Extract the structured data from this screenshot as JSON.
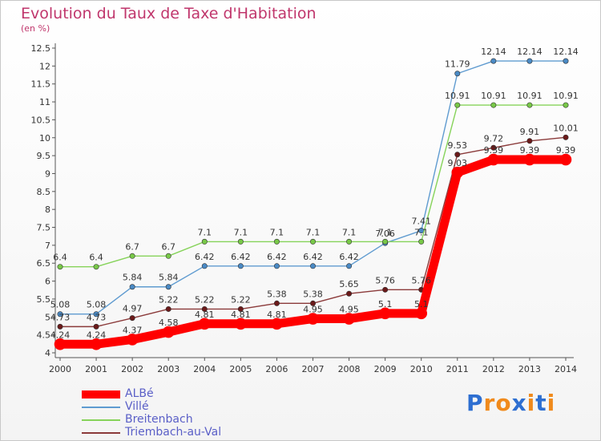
{
  "chart_data": {
    "type": "line",
    "title": "Evolution du Taux de Taxe d'Habitation",
    "subtitle": "(en %)",
    "x": [
      "2000",
      "2001",
      "2002",
      "2003",
      "2004",
      "2005",
      "2006",
      "2007",
      "2008",
      "2009",
      "2010",
      "2011",
      "2012",
      "2013",
      "2014"
    ],
    "ylim": [
      4,
      12.5
    ],
    "yticks": [
      4,
      4.5,
      5,
      5.5,
      6,
      6.5,
      7,
      7.5,
      8,
      8.5,
      9,
      9.5,
      10,
      10.5,
      11,
      11.5,
      12,
      12.5
    ],
    "grid": false,
    "legend_position": "bottom-left",
    "series": [
      {
        "name": "Ville",
        "color": "#5f9bd0",
        "marker": "#4a8ac5",
        "values": [
          5.08,
          5.08,
          5.84,
          5.84,
          6.42,
          6.42,
          6.42,
          6.42,
          6.42,
          7.06,
          7.41,
          11.79,
          12.14,
          12.14,
          12.14
        ],
        "labels": [
          "5.08",
          "5.08",
          "5.84",
          "5.84",
          "6.42",
          "6.42",
          "6.42",
          "6.42",
          "6.42",
          "7.06",
          "7.41",
          "11.79",
          "12.14",
          "12.14",
          "12.14"
        ]
      },
      {
        "name": "Breitenbach",
        "color": "#86d35a",
        "marker": "#78c848",
        "values": [
          6.4,
          6.4,
          6.7,
          6.7,
          7.1,
          7.1,
          7.1,
          7.1,
          7.1,
          7.1,
          7.1,
          10.91,
          10.91,
          10.91,
          10.91
        ],
        "labels": [
          "6.4",
          "6.4",
          "6.7",
          "6.7",
          "7.1",
          "7.1",
          "7.1",
          "7.1",
          "7.1",
          "7.1",
          "7.1",
          "10.91",
          "10.91",
          "10.91",
          "10.91"
        ]
      },
      {
        "name": "Triembach-au-Val",
        "color": "#8b3a3a",
        "marker": "#6b1a1a",
        "values": [
          4.73,
          4.73,
          4.97,
          5.22,
          5.22,
          5.22,
          5.38,
          5.38,
          5.65,
          5.76,
          5.76,
          9.53,
          9.72,
          9.91,
          10.01
        ],
        "labels": [
          "4.73",
          "4.73",
          "4.97",
          "5.22",
          "5.22",
          "5.22",
          "5.38",
          "5.38",
          "5.65",
          "5.76",
          "5.76",
          "9.53",
          "9.72",
          "9.91",
          "10.01"
        ]
      },
      {
        "name": "ALBé",
        "color": "#ff0000",
        "marker": "#ff0000",
        "values": [
          4.24,
          4.24,
          4.37,
          4.58,
          4.81,
          4.81,
          4.81,
          4.95,
          4.95,
          5.1,
          5.1,
          9.03,
          9.39,
          9.39,
          9.39
        ],
        "labels": [
          "4.24",
          "4.24",
          "4.37",
          "4.58",
          "4.81",
          "4.81",
          "4.81",
          "4.95",
          "4.95",
          "5.1",
          "5.1",
          "9.03",
          "9.39",
          "9.39",
          "9.39"
        ]
      }
    ],
    "legend": [
      {
        "name": "ALBé",
        "color": "#ff0000"
      },
      {
        "name": "Villé",
        "color": "#5f9bd0"
      },
      {
        "name": "Breitenbach",
        "color": "#86d35a"
      },
      {
        "name": "Triembach-au-Val",
        "color": "#8b3a3a"
      }
    ]
  },
  "logo": {
    "letters": [
      "P",
      "r",
      "o",
      "x",
      "i",
      "t",
      "i"
    ],
    "colors": [
      "#2e6fd1",
      "#f08a1c",
      "#f08a1c",
      "#2e6fd1",
      "#f08a1c",
      "#2e6fd1",
      "#f08a1c"
    ]
  }
}
